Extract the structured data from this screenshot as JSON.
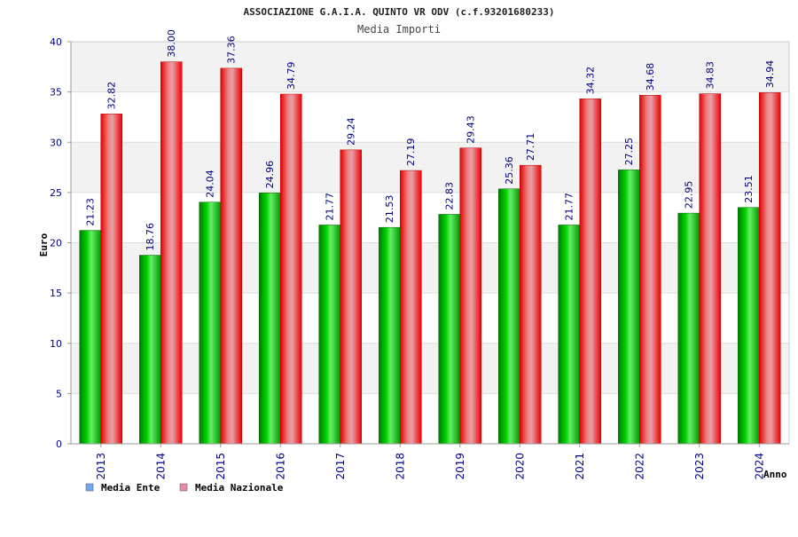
{
  "colors": {
    "ente": "#00b000",
    "nazionale": "#ee0000",
    "legend_ente": "#6fa8f0",
    "legend_nazionale": "#e88aa8",
    "band": "#f2f2f2",
    "grid": "#dddddd",
    "tick_text": "#00008b"
  },
  "chart_data": {
    "type": "bar",
    "title": "ASSOCIAZIONE G.A.I.A. QUINTO VR ODV (c.f.93201680233)",
    "subtitle": "Media Importi",
    "xlabel": "Anno",
    "ylabel": "Euro",
    "ylim": [
      0,
      40
    ],
    "yticks": [
      0,
      5,
      10,
      15,
      20,
      25,
      30,
      35,
      40
    ],
    "grid": true,
    "legend_position": "bottom-left",
    "categories": [
      "2013",
      "2014",
      "2015",
      "2016",
      "2017",
      "2018",
      "2019",
      "2020",
      "2021",
      "2022",
      "2023",
      "2024"
    ],
    "series": [
      {
        "name": "Media Ente",
        "values": [
          21.23,
          18.76,
          24.04,
          24.96,
          21.77,
          21.53,
          22.83,
          25.36,
          21.77,
          27.25,
          22.95,
          23.51
        ],
        "labels": [
          "21.23",
          "18.76",
          "24.04",
          "24.96",
          "21.77",
          "21.53",
          "22.83",
          "25.36",
          "21.77",
          "27.25",
          "22.95",
          "23.51"
        ]
      },
      {
        "name": "Media Nazionale",
        "values": [
          32.82,
          38.0,
          37.36,
          34.79,
          29.24,
          27.19,
          29.43,
          27.71,
          34.32,
          34.68,
          34.83,
          34.94
        ],
        "labels": [
          "32.82",
          "38.00",
          "37.36",
          "34.79",
          "29.24",
          "27.19",
          "29.43",
          "27.71",
          "34.32",
          "34.68",
          "34.83",
          "34.94"
        ]
      }
    ]
  }
}
